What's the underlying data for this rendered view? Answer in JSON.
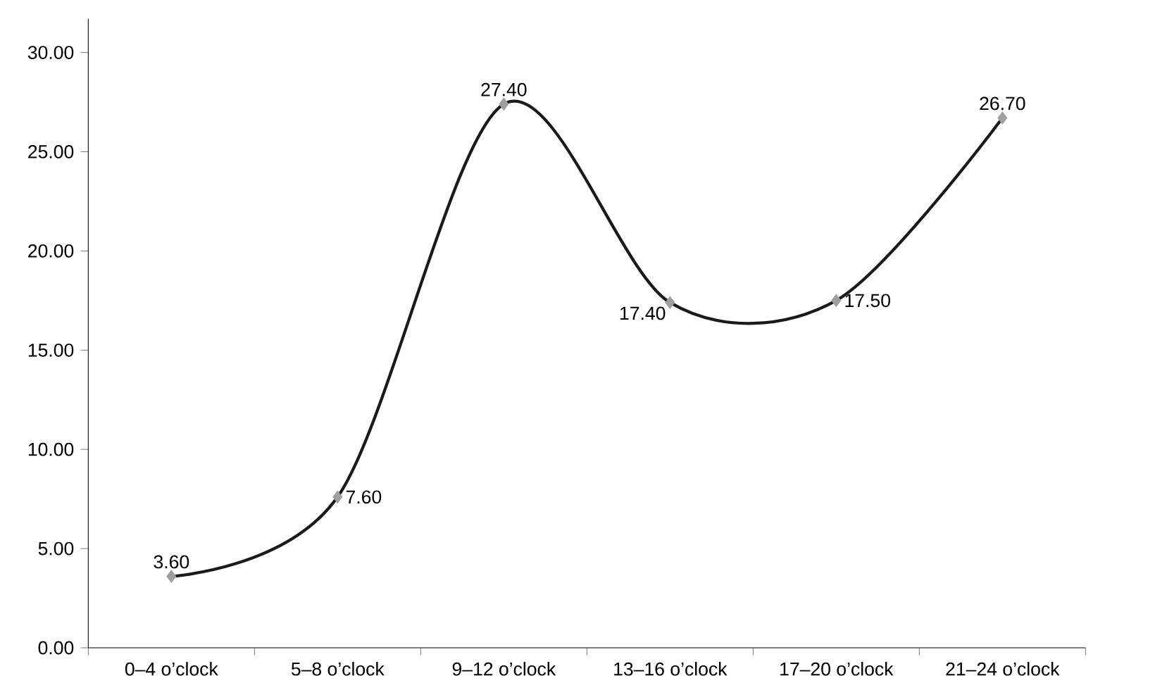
{
  "chart_data": {
    "type": "line",
    "categories": [
      "0–4 o’clock",
      "5–8 o’clock",
      "9–12 o’clock",
      "13–16 o’clock",
      "17–20 o’clock",
      "21–24 o’clock"
    ],
    "series": [
      {
        "color": "#1a1a1a",
        "values": [
          3.6,
          7.6,
          27.4,
          17.4,
          17.5,
          26.7
        ],
        "value_labels": [
          "3.60",
          "7.60",
          "27.40",
          "17.40",
          "17.50",
          "26.70"
        ]
      }
    ],
    "ylim": [
      0,
      31.7
    ],
    "yticks": [
      {
        "value": 0,
        "label": "0.00"
      },
      {
        "value": 5,
        "label": "5.00"
      },
      {
        "value": 10,
        "label": "10.00"
      },
      {
        "value": 15,
        "label": "15.00"
      },
      {
        "value": 20,
        "label": "20.00"
      },
      {
        "value": 25,
        "label": "25.00"
      },
      {
        "value": 30,
        "label": "30.00"
      }
    ],
    "marker": "diamond",
    "line_style": "solid"
  }
}
